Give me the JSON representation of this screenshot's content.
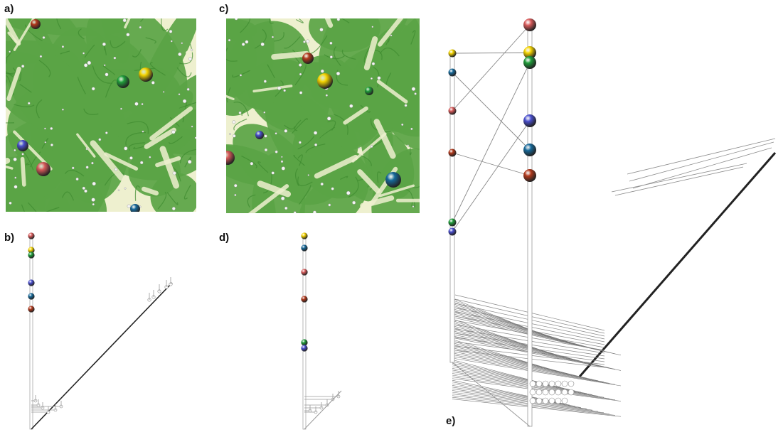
{
  "labels": {
    "a": "a)",
    "b": "b)",
    "c": "c)",
    "d": "d)",
    "e": "e)"
  },
  "colors": {
    "red": "#d95b5b",
    "darkred": "#b2391c",
    "yellow": "#f5d400",
    "green": "#1f9e3a",
    "blue": "#4a4fcf",
    "teal": "#16699a",
    "field_green": "#5aa445",
    "field_light": "#eef0cf",
    "stem": "#ffffff",
    "diag": "#222222"
  },
  "panels": {
    "a": {
      "kind": "scalar-field",
      "spheres": [
        "darkred",
        "yellow",
        "green",
        "blue",
        "red",
        "teal"
      ]
    },
    "b": {
      "kind": "persistence-diagram",
      "spheres": [
        "red",
        "yellow",
        "green",
        "blue",
        "teal",
        "darkred"
      ]
    },
    "c": {
      "kind": "scalar-field",
      "spheres": [
        "darkred",
        "yellow",
        "green",
        "blue",
        "red",
        "teal"
      ]
    },
    "d": {
      "kind": "persistence-diagram",
      "spheres": [
        "yellow",
        "teal",
        "red",
        "darkred",
        "green",
        "blue"
      ]
    },
    "e": {
      "kind": "matching-3d",
      "left_spheres": [
        "yellow",
        "teal",
        "red",
        "darkred",
        "green",
        "blue"
      ],
      "right_spheres": [
        "red",
        "yellow",
        "green",
        "blue",
        "teal",
        "darkred"
      ]
    }
  }
}
